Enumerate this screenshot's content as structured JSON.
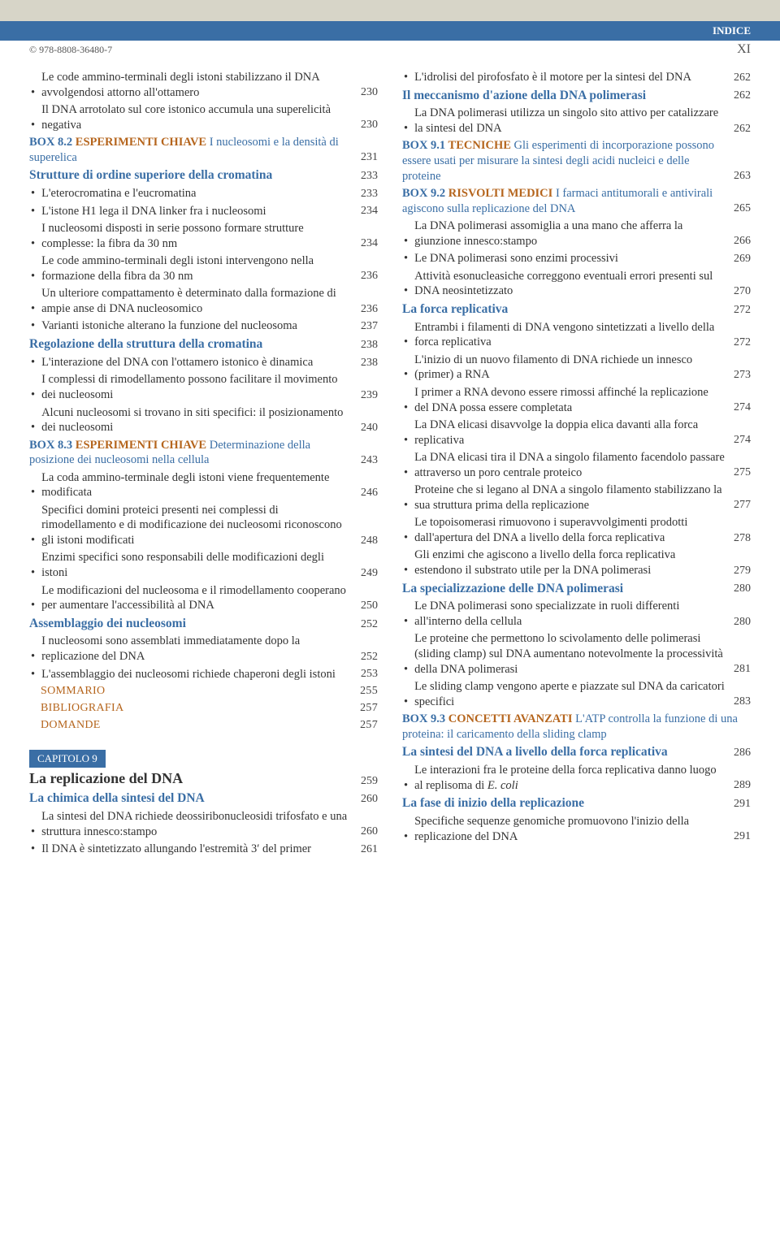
{
  "header": {
    "label": "INDICE",
    "isbn": "© 978-8808-36480-7",
    "page": "XI"
  },
  "left": [
    {
      "type": "bullet",
      "text": "Le code ammino-terminali degli istoni stabilizzano il DNA avvolgendosi attorno all'ottamero",
      "page": "230"
    },
    {
      "type": "bullet",
      "text": "Il DNA arrotolato sul core istonico accumula una superelicità negativa",
      "page": "230"
    },
    {
      "type": "box",
      "prefix": "BOX 8.2",
      "label": "ESPERIMENTI CHIAVE",
      "text": "I nucleosomi e la densità di superelica",
      "page": "231"
    },
    {
      "type": "section",
      "text": "Strutture di ordine superiore della cromatina",
      "page": "233"
    },
    {
      "type": "bullet",
      "text": "L'eterocromatina e l'eucromatina",
      "page": "233"
    },
    {
      "type": "bullet",
      "text": "L'istone H1 lega il DNA linker fra i nucleosomi",
      "page": "234"
    },
    {
      "type": "bullet",
      "text": "I nucleosomi disposti in serie possono formare strutture complesse: la fibra da 30 nm",
      "page": "234"
    },
    {
      "type": "bullet",
      "text": "Le code ammino-terminali degli istoni intervengono nella formazione della fibra da 30 nm",
      "page": "236"
    },
    {
      "type": "bullet",
      "text": "Un ulteriore compattamento è determinato dalla formazione di ampie anse di DNA nucleosomico",
      "page": "236"
    },
    {
      "type": "bullet",
      "text": "Varianti istoniche alterano la funzione del nucleosoma",
      "page": "237"
    },
    {
      "type": "section",
      "text": "Regolazione della struttura della cromatina",
      "page": "238"
    },
    {
      "type": "bullet",
      "text": "L'interazione del DNA con l'ottamero istonico è dinamica",
      "page": "238"
    },
    {
      "type": "bullet",
      "text": "I complessi di rimodellamento possono facilitare il movimento dei nucleosomi",
      "page": "239"
    },
    {
      "type": "bullet",
      "text": "Alcuni nucleosomi si trovano in siti specifici: il posizionamento dei nucleosomi",
      "page": "240"
    },
    {
      "type": "box",
      "prefix": "BOX 8.3",
      "label": "ESPERIMENTI CHIAVE",
      "text": "Determinazione della posizione dei nucleosomi  nella cellula",
      "page": "243"
    },
    {
      "type": "bullet",
      "text": "La coda ammino-terminale degli istoni viene frequentemente modificata",
      "page": "246"
    },
    {
      "type": "bullet",
      "text": "Specifici domini proteici presenti nei complessi di rimodellamento e di modificazione dei nucleosomi riconoscono gli istoni modificati",
      "page": "248"
    },
    {
      "type": "bullet",
      "text": "Enzimi specifici sono responsabili delle modificazioni degli istoni",
      "page": "249"
    },
    {
      "type": "bullet",
      "text": "Le modificazioni del nucleosoma e il rimodellamento cooperano per aumentare l'accessibilità al DNA",
      "page": "250"
    },
    {
      "type": "section",
      "text": "Assemblaggio dei nucleosomi",
      "page": "252"
    },
    {
      "type": "bullet",
      "text": "I nucleosomi sono assemblati immediatamente dopo la replicazione del DNA",
      "page": "252"
    },
    {
      "type": "bullet",
      "text": "L'assemblaggio dei nucleosomi richiede chaperoni degli istoni",
      "page": "253"
    },
    {
      "type": "endref",
      "text": "SOMMARIO",
      "page": "255"
    },
    {
      "type": "endref",
      "text": "BIBLIOGRAFIA",
      "page": "257"
    },
    {
      "type": "endref",
      "text": "DOMANDE",
      "page": "257"
    },
    {
      "type": "chapter",
      "tag": "CAPITOLO 9",
      "title": "La replicazione del DNA",
      "page": "259"
    },
    {
      "type": "section",
      "text": "La chimica della sintesi del DNA",
      "page": "260"
    },
    {
      "type": "bullet",
      "text": "La sintesi del DNA richiede deossiribonucleosidi trifosfato e una struttura innesco:stampo",
      "page": "260"
    },
    {
      "type": "bullet",
      "text": "Il DNA è sintetizzato allungando l'estremità 3′ del primer",
      "page": "261"
    }
  ],
  "right": [
    {
      "type": "bullet",
      "text": "L'idrolisi del pirofosfato è il motore per la sintesi del DNA",
      "page": "262"
    },
    {
      "type": "section",
      "text": "Il meccanismo d'azione della DNA polimerasi",
      "page": "262"
    },
    {
      "type": "bullet",
      "text": "La DNA polimerasi utilizza un singolo sito attivo per catalizzare la sintesi del DNA",
      "page": "262"
    },
    {
      "type": "box",
      "prefix": "BOX 9.1",
      "label": "TECNICHE",
      "text": "Gli esperimenti di incorporazione possono essere usati per misurare la sintesi degli acidi nucleici e delle proteine",
      "page": "263"
    },
    {
      "type": "box",
      "prefix": "BOX 9.2",
      "label": "RISVOLTI MEDICI",
      "text": "I farmaci antitumorali e antivirali agiscono sulla replicazione del DNA",
      "page": "265"
    },
    {
      "type": "bullet",
      "text": "La DNA polimerasi assomiglia a una mano che afferra la giunzione innesco:stampo",
      "page": "266"
    },
    {
      "type": "bullet",
      "text": "Le DNA polimerasi sono enzimi processivi",
      "page": "269"
    },
    {
      "type": "bullet",
      "text": "Attività esonucleasiche correggono eventuali errori presenti sul DNA neosintetizzato",
      "page": "270"
    },
    {
      "type": "section",
      "text": "La forca replicativa",
      "page": "272"
    },
    {
      "type": "bullet",
      "text": "Entrambi i filamenti di DNA vengono sintetizzati a livello della forca replicativa",
      "page": "272"
    },
    {
      "type": "bullet",
      "text": "L'inizio di un nuovo filamento di DNA richiede un innesco (primer) a RNA",
      "page": "273"
    },
    {
      "type": "bullet",
      "text": "I primer a RNA devono essere rimossi affinché la replicazione del DNA possa essere completata",
      "page": "274"
    },
    {
      "type": "bullet",
      "text": "La DNA elicasi disavvolge la doppia elica davanti alla forca replicativa",
      "page": "274"
    },
    {
      "type": "bullet",
      "text": "La DNA elicasi tira il DNA a singolo filamento facendolo passare attraverso un poro centrale proteico",
      "page": "275"
    },
    {
      "type": "bullet",
      "text": "Proteine che si legano al DNA a singolo filamento stabilizzano la sua struttura prima della replicazione",
      "page": "277"
    },
    {
      "type": "bullet",
      "text": "Le topoisomerasi rimuovono i superavvolgimenti prodotti dall'apertura del DNA a livello della forca replicativa",
      "page": "278"
    },
    {
      "type": "bullet",
      "text": "Gli enzimi che agiscono a livello della forca replicativa estendono il substrato utile per la DNA polimerasi",
      "page": "279"
    },
    {
      "type": "section",
      "text": "La specializzazione delle DNA polimerasi",
      "page": "280"
    },
    {
      "type": "bullet",
      "text": "Le DNA polimerasi sono specializzate in ruoli differenti all'interno della cellula",
      "page": "280"
    },
    {
      "type": "bullet",
      "text": "Le proteine che permettono lo scivolamento delle polimerasi (sliding clamp) sul DNA aumentano notevolmente la processività della DNA polimerasi",
      "page": "281"
    },
    {
      "type": "bullet",
      "text": "Le sliding clamp vengono aperte e piazzate sul DNA da caricatori specifici",
      "page": "283"
    },
    {
      "type": "box",
      "prefix": "BOX 9.3",
      "label": "CONCETTI AVANZATI",
      "text": "L'ATP controlla la funzione di una proteina: il caricamento della sliding clamp",
      "page": ""
    },
    {
      "type": "section",
      "text": "La sintesi del DNA a livello della forca replicativa",
      "page": "286"
    },
    {
      "type": "bullet",
      "text": "Le interazioni fra le proteine della forca replicativa danno luogo al replisoma di <i>E. coli</i>",
      "page": "289"
    },
    {
      "type": "section",
      "text": "La fase di inizio della replicazione",
      "page": "291"
    },
    {
      "type": "bullet",
      "text": "Specifiche sequenze genomiche promuovono l'inizio della replicazione del DNA",
      "page": "291"
    }
  ]
}
